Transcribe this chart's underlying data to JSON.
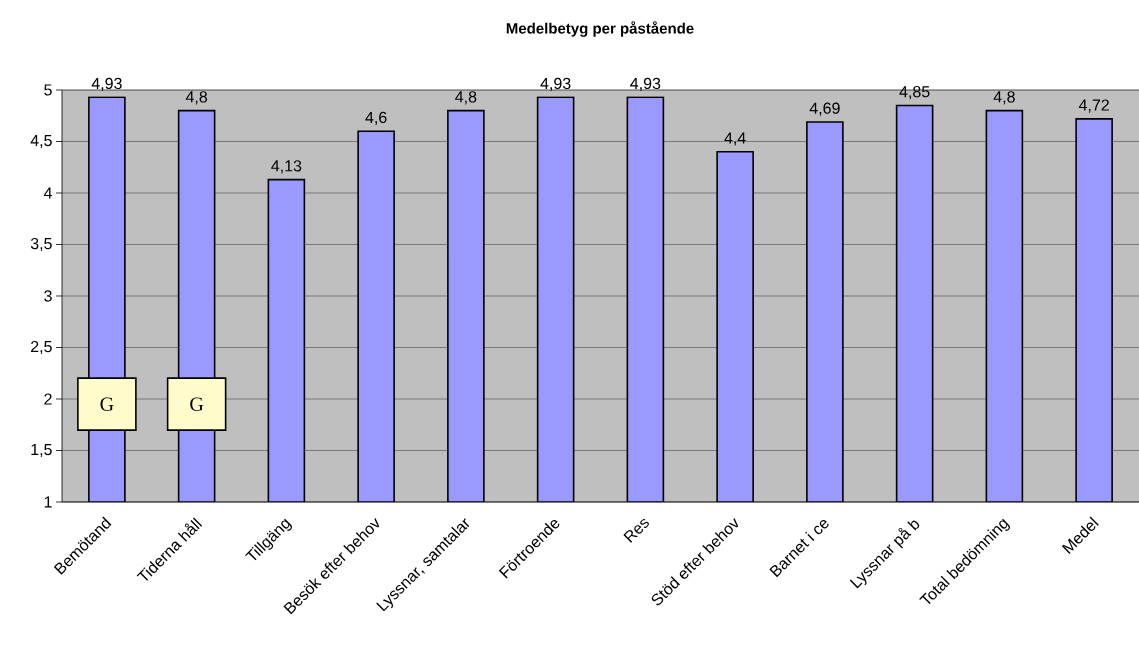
{
  "chart_data": {
    "type": "bar",
    "title": "Medelbetyg per påstående",
    "categories": [
      "Bemötand",
      "Tiderna håll",
      "Tillgäng",
      "Besök efter behov",
      "Lyssnar, samtalar",
      "Förtroende",
      "Res",
      "Stöd efter behov",
      "Barnet i ce",
      "Lyssnar på b",
      "Total bedömning",
      "Medel"
    ],
    "values": [
      4.93,
      4.8,
      4.13,
      4.6,
      4.8,
      4.93,
      4.93,
      4.4,
      4.69,
      4.85,
      4.8,
      4.72
    ],
    "value_labels": [
      "4,93",
      "4,8",
      "4,13",
      "4,6",
      "4,8",
      "4,93",
      "4,93",
      "4,4",
      "4,69",
      "4,85",
      "4,8",
      "4,72"
    ],
    "color": "#9999ff",
    "ylim": [
      1,
      5
    ],
    "yticks": [
      1,
      {
        "value": 1.5,
        "label": "1,5"
      },
      2,
      {
        "value": 2.5,
        "label": "2,5"
      },
      3,
      {
        "value": 3.5,
        "label": "3,5"
      },
      4,
      {
        "value": 4.5,
        "label": "4,5"
      },
      5
    ],
    "grid": "y",
    "annotations": [
      {
        "text": "G",
        "x": "Bemötand",
        "y": 1.95
      },
      {
        "text": "G",
        "x": "Tiderna håll",
        "y": 1.95
      }
    ]
  }
}
